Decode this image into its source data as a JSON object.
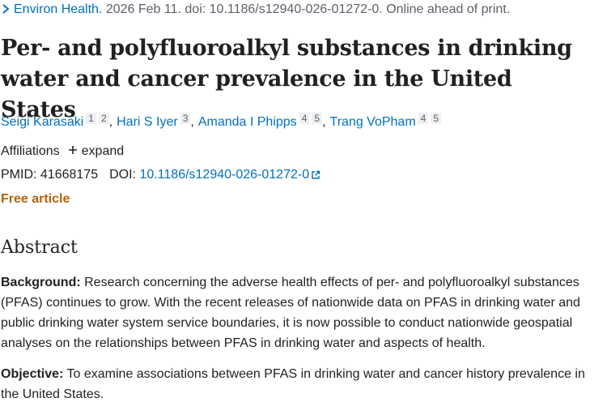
{
  "citation": {
    "journal": "Environ Health.",
    "details": "2026 Feb 11. doi: 10.1186/s12940-026-01272-0. Online ahead of print."
  },
  "title": "Per- and polyfluoroalkyl substances in drinking water and cancer prevalence in the United States",
  "authors": {
    "separator": ",",
    "list": [
      {
        "name": "Seigi Karasaki",
        "affiliations": [
          "1",
          "2"
        ]
      },
      {
        "name": "Hari S Iyer",
        "affiliations": [
          "3"
        ]
      },
      {
        "name": "Amanda I Phipps",
        "affiliations": [
          "4",
          "5"
        ]
      },
      {
        "name": "Trang VoPham",
        "affiliations": [
          "4",
          "5"
        ]
      }
    ]
  },
  "affiliations": {
    "label": "Affiliations",
    "toggle": "expand"
  },
  "identifiers": {
    "pmid_label": "PMID:",
    "pmid": "41668175",
    "doi_label": "DOI:",
    "doi": "10.1186/s12940-026-01272-0"
  },
  "free_article": "Free article",
  "abstract": {
    "heading": "Abstract",
    "sections": [
      {
        "label": "Background:",
        "text": "Research concerning the adverse health effects of per- and polyfluoroalkyl substances (PFAS) continues to grow. With the recent releases of nationwide data on PFAS in drinking water and public drinking water system service boundaries, it is now possible to conduct nationwide geospatial analyses on the relationships between PFAS in drinking water and aspects of health."
      },
      {
        "label": "Objective:",
        "text": "To examine associations between PFAS in drinking water and cancer history prevalence in the United States."
      }
    ]
  }
}
